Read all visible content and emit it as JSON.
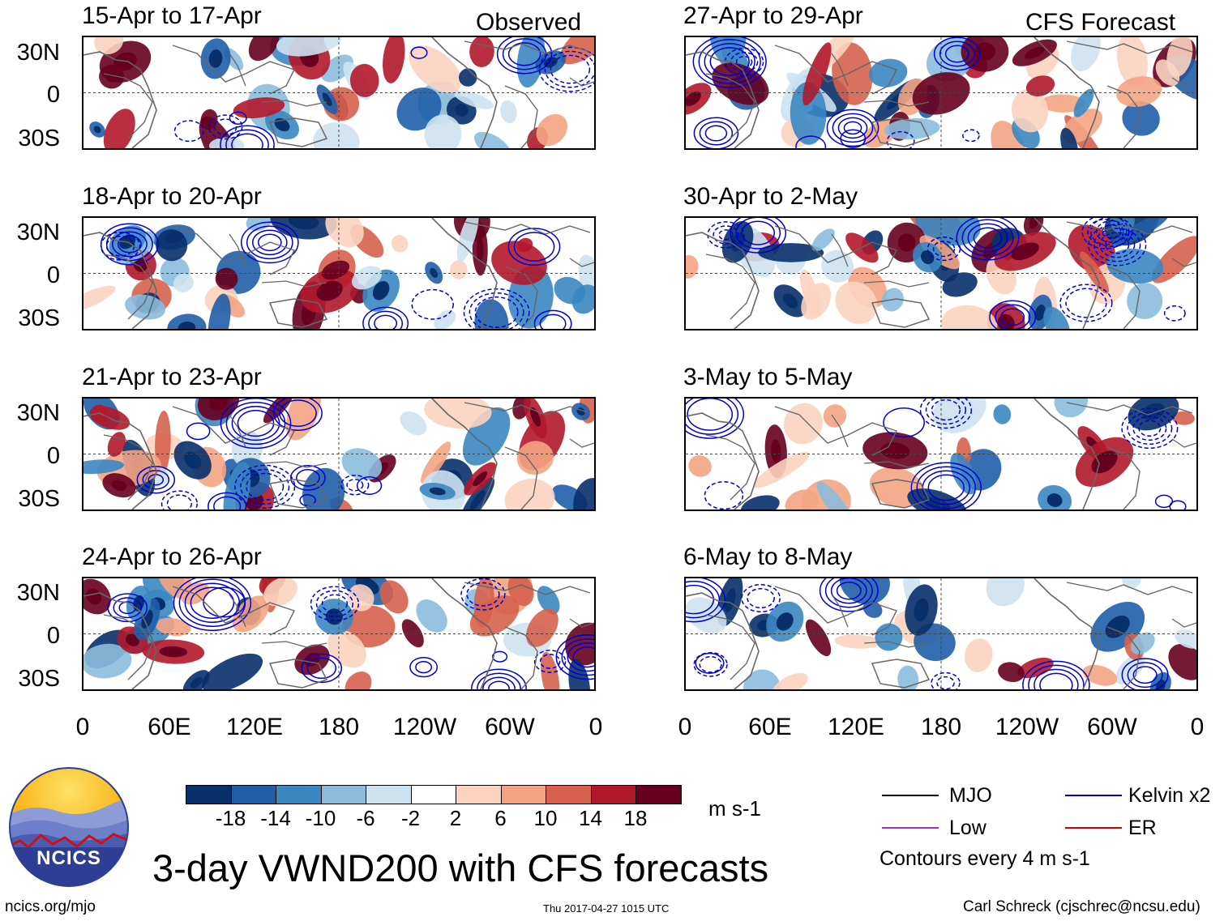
{
  "header": {
    "observed_label": "Observed",
    "forecast_label": "CFS Forecast"
  },
  "panels": {
    "left": [
      {
        "title": "15-Apr to 17-Apr"
      },
      {
        "title": "18-Apr to 20-Apr"
      },
      {
        "title": "21-Apr to 23-Apr"
      },
      {
        "title": "24-Apr to 26-Apr"
      }
    ],
    "right": [
      {
        "title": "27-Apr to 29-Apr"
      },
      {
        "title": "30-Apr to 2-May"
      },
      {
        "title": "3-May to 5-May"
      },
      {
        "title": "6-May to 8-May"
      }
    ]
  },
  "axes": {
    "lat_labels": [
      "30N",
      "0",
      "30S"
    ],
    "lon_labels": [
      "0",
      "60E",
      "120E",
      "180",
      "120W",
      "60W",
      "0"
    ]
  },
  "colorbar": {
    "tick_labels": [
      "-18",
      "-14",
      "-10",
      "-6",
      "-2",
      "2",
      "6",
      "10",
      "14",
      "18"
    ],
    "unit": "m s-1",
    "colors": [
      "#08306b",
      "#1f5fa8",
      "#3b87c2",
      "#8bbcdc",
      "#cde2ef",
      "#ffffff",
      "#fbd3c0",
      "#f4a483",
      "#d6604d",
      "#b2182b",
      "#67001f"
    ]
  },
  "legend": {
    "mjo": {
      "label": "MJO",
      "color": "#000000"
    },
    "kelvin": {
      "label": "Kelvin x2",
      "color": "#0000cc"
    },
    "low": {
      "label": "Low",
      "color": "#9933cc"
    },
    "er": {
      "label": "ER",
      "color": "#cc0000"
    },
    "contour_note": "Contours every 4 m s-1"
  },
  "footer": {
    "main_title": "3-day VWND200 with CFS forecasts",
    "url": "ncics.org/mjo",
    "timestamp": "Thu 2017-04-27 1015 UTC",
    "author": "Carl Schreck (cjschrec@ncsu.edu)",
    "logo_text": "NCICS"
  }
}
